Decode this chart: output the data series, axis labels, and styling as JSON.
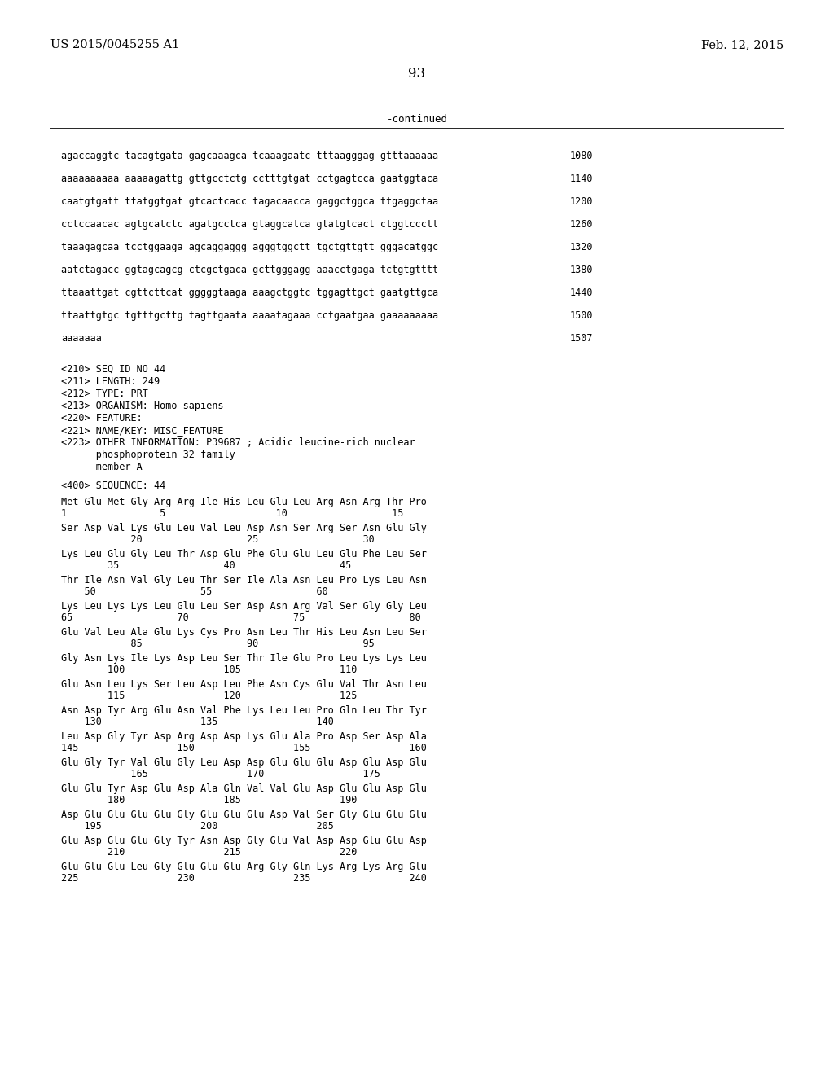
{
  "top_left": "US 2015/0045255 A1",
  "top_right": "Feb. 12, 2015",
  "page_number": "93",
  "continued_label": "-continued",
  "background_color": "#ffffff",
  "sequence_lines": [
    [
      "agaccaggtc tacagtgata gagcaaagca tcaaagaatc tttaagggag gtttaaaaaa",
      "1080"
    ],
    [
      "aaaaaaaaaa aaaaagattg gttgcctctg cctttgtgat cctgagtcca gaatggtaca",
      "1140"
    ],
    [
      "caatgtgatt ttatggtgat gtcactcacc tagacaacca gaggctggca ttgaggctaa",
      "1200"
    ],
    [
      "cctccaacac agtgcatctc agatgcctca gtaggcatca gtatgtcact ctggtccctt",
      "1260"
    ],
    [
      "taaagagcaa tcctggaaga agcaggaggg agggtggctt tgctgttgtt gggacatggc",
      "1320"
    ],
    [
      "aatctagacc ggtagcagcg ctcgctgaca gcttgggagg aaacctgaga tctgtgtttt",
      "1380"
    ],
    [
      "ttaaattgat cgttcttcat gggggtaaga aaagctggtc tggagttgct gaatgttgca",
      "1440"
    ],
    [
      "ttaattgtgc tgtttgcttg tagttgaata aaaatagaaa cctgaatgaa gaaaaaaaaa",
      "1500"
    ],
    [
      "aaaaaaa",
      "1507"
    ]
  ],
  "metadata_lines": [
    "<210> SEQ ID NO 44",
    "<211> LENGTH: 249",
    "<212> TYPE: PRT",
    "<213> ORGANISM: Homo sapiens",
    "<220> FEATURE:",
    "<221> NAME/KEY: MISC_FEATURE",
    "<223> OTHER INFORMATION: P39687 ; Acidic leucine-rich nuclear",
    "      phosphoprotein 32 family",
    "      member A"
  ],
  "sequence_label": "<400> SEQUENCE: 44",
  "aa_seq_lines": [
    "Met Glu Met Gly Arg Arg Ile His Leu Glu Leu Arg Asn Arg Thr Pro",
    "Ser Asp Val Lys Glu Leu Val Leu Asp Asn Ser Arg Ser Asn Glu Gly",
    "Lys Leu Glu Gly Leu Thr Asp Glu Phe Glu Glu Leu Glu Phe Leu Ser",
    "Thr Ile Asn Val Gly Leu Thr Ser Ile Ala Asn Leu Pro Lys Leu Asn",
    "Lys Leu Lys Lys Leu Glu Leu Ser Asp Asn Arg Val Ser Gly Gly Leu",
    "Glu Val Leu Ala Glu Lys Cys Pro Asn Leu Thr His Leu Asn Leu Ser",
    "Gly Asn Lys Ile Lys Asp Leu Ser Thr Ile Glu Pro Leu Lys Lys Leu",
    "Glu Asn Leu Lys Ser Leu Asp Leu Phe Asn Cys Glu Val Thr Asn Leu",
    "Asn Asp Tyr Arg Glu Asn Val Phe Lys Leu Leu Pro Gln Leu Thr Tyr",
    "Leu Asp Gly Tyr Asp Arg Asp Asp Lys Glu Ala Pro Asp Ser Asp Ala",
    "Glu Gly Tyr Val Glu Gly Leu Asp Asp Glu Glu Glu Asp Glu Asp Glu",
    "Glu Glu Tyr Asp Glu Asp Ala Gln Val Val Glu Asp Glu Glu Asp Glu",
    "Asp Glu Glu Glu Glu Gly Glu Glu Glu Asp Val Ser Gly Glu Glu Glu",
    "Glu Asp Glu Glu Gly Tyr Asn Asp Gly Glu Val Asp Asp Glu Glu Asp",
    "Glu Glu Glu Leu Gly Glu Glu Glu Arg Gly Gln Lys Arg Lys Arg Glu"
  ],
  "aa_num_lines": [
    "1                5                   10                  15",
    "            20                  25                  30",
    "        35                  40                  45",
    "    50                  55                  60",
    "65                  70                  75                  80",
    "            85                  90                  95",
    "        100                 105                 110",
    "        115                 120                 125",
    "    130                 135                 140",
    "145                 150                 155                 160",
    "            165                 170                 175",
    "        180                 185                 190",
    "    195                 200                 205",
    "        210                 215                 220",
    "225                 230                 235                 240"
  ]
}
